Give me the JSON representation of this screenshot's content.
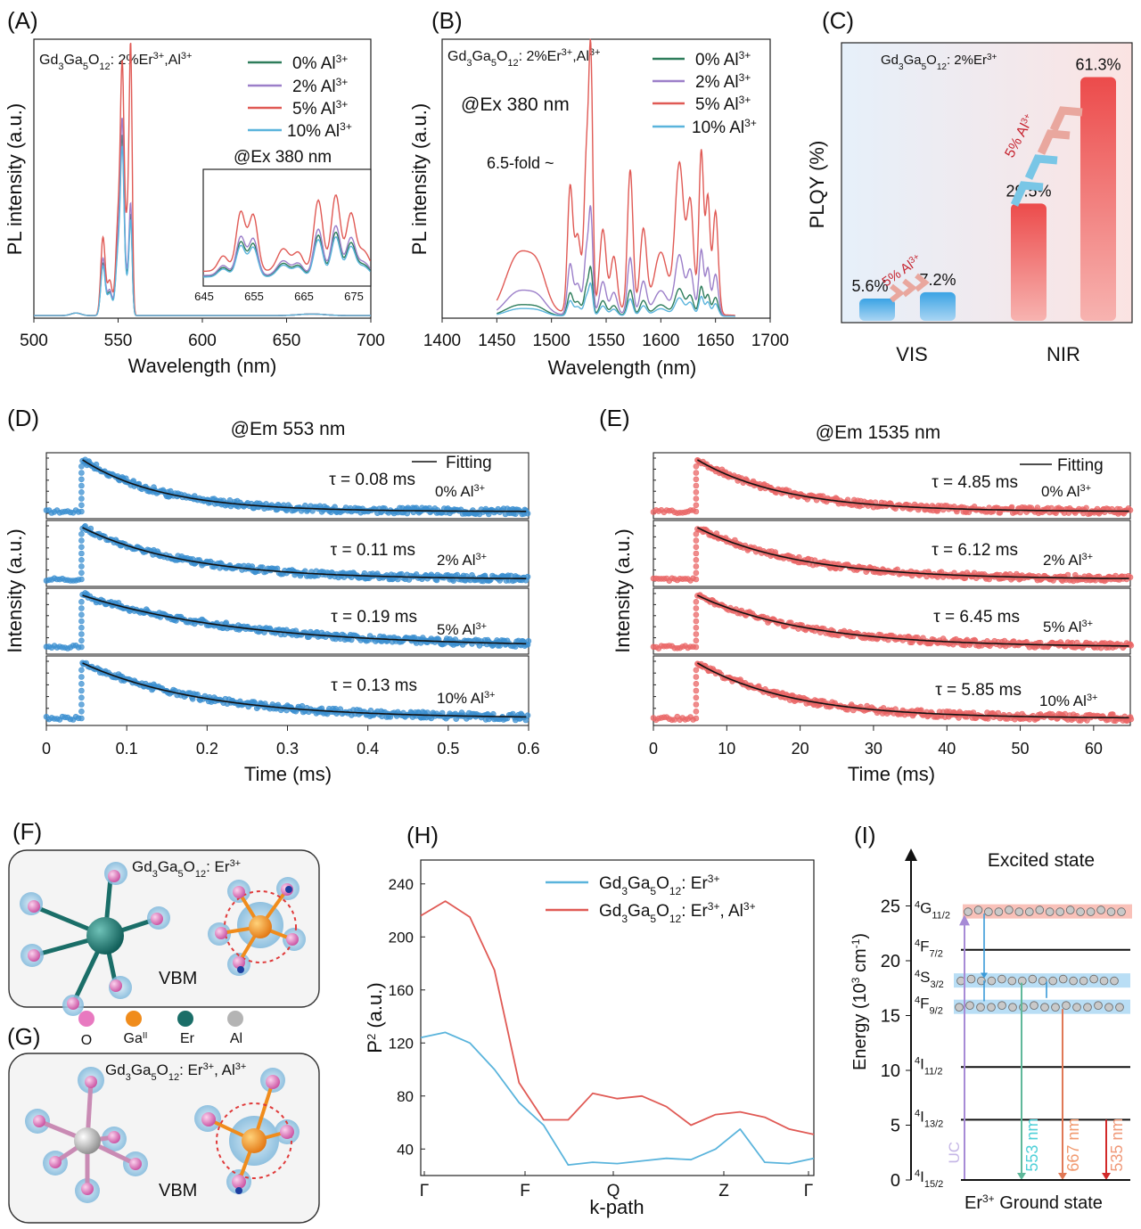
{
  "figure": {
    "panel_labels": [
      "(A)",
      "(B)",
      "(C)",
      "(D)",
      "(E)",
      "(F)",
      "(G)",
      "(H)",
      "(I)"
    ]
  },
  "panelA": {
    "compound_main": "Gd",
    "sub1": "3",
    "mid1": "Ga",
    "sub2": "5",
    "mid2": "O",
    "sub3": "12",
    "compound_tail": ": 2%Er",
    "sup1": "3+",
    "tail2": ",Al",
    "sup2": "3+",
    "legend": [
      "0% Al",
      "2% Al",
      "5% Al",
      "10% Al"
    ],
    "legend_sup": "3+",
    "excitation": "@Ex 380 nm",
    "inset_xticks": [
      "645",
      "655",
      "665",
      "675"
    ]
  },
  "panelB": {
    "legend": [
      "0% Al",
      "2% Al",
      "5% Al",
      "10% Al"
    ],
    "excitation": "@Ex 380 nm",
    "fold": "6.5-fold ~"
  },
  "panelC": {
    "compound": "Gd3Ga5O12: 2%Er3+",
    "arrow_label": "5% Al3+"
  },
  "panelD": {
    "emission": "@Em 553 nm",
    "fitting": "Fitting"
  },
  "panelE": {
    "emission": "@Em 1535 nm",
    "fitting": "Fitting"
  },
  "panelF": {
    "compound": "Gd3Ga5O12: Er3+",
    "vbm": "VBM"
  },
  "panelG": {
    "compound": "Gd3Ga5O12: Er3+, Al3+",
    "vbm": "VBM",
    "legend": [
      "O",
      "Ga",
      "Er",
      "Al"
    ],
    "legend_colors": [
      "#e879c0",
      "#f08c1c",
      "#1a6e68",
      "#b4b4b4"
    ]
  },
  "panelH": {
    "series_labels": [
      "Gd3Ga5O12: Er3+",
      "Gd3Ga5O12: Er3+, Al3+"
    ]
  },
  "panelI": {
    "title": "Excited state",
    "bottom": "Er3+ Ground state",
    "levels": [
      "4G11/2",
      "4F7/2",
      "4S3/2",
      "4F9/2",
      "4I11/2",
      "4I13/2",
      "4I15/2"
    ],
    "transitions": [
      "UC",
      "553 nm",
      "667 nm",
      "535 nm"
    ]
  },
  "chart_data": [
    {
      "id": "A",
      "type": "line",
      "title": "Gd3Ga5O12: 2%Er3+,Al3+",
      "xlabel": "Wavelength (nm)",
      "ylabel": "PL intensity (a.u.)",
      "xlim": [
        500,
        700
      ],
      "xticks": [
        500,
        550,
        600,
        650,
        700
      ],
      "series": [
        {
          "name": "0% Al3+",
          "color": "#2e7d5b",
          "peak_values": [
            0.2,
            0.64,
            0.36
          ]
        },
        {
          "name": "2% Al3+",
          "color": "#9c7fc9",
          "peak_values": [
            0.22,
            0.7,
            0.4
          ]
        },
        {
          "name": "5% Al3+",
          "color": "#e05a55",
          "peak_values": [
            0.3,
            0.9,
            0.97
          ]
        },
        {
          "name": "10% Al3+",
          "color": "#5ab4dc",
          "peak_values": [
            0.19,
            0.6,
            0.34
          ]
        }
      ]
    },
    {
      "id": "B",
      "type": "line",
      "title": "Gd3Ga5O12: 2%Er3+,Al3+",
      "xlabel": "Wavelength (nm)",
      "ylabel": "PL intensity (a.u.)",
      "xlim": [
        1400,
        1700
      ],
      "xticks": [
        1400,
        1450,
        1500,
        1550,
        1600,
        1650,
        1700
      ],
      "series": [
        {
          "name": "0% Al3+",
          "color": "#2e7d5b",
          "scale": 0.18
        },
        {
          "name": "2% Al3+",
          "color": "#9c7fc9",
          "scale": 0.4
        },
        {
          "name": "5% Al3+",
          "color": "#e05a55",
          "scale": 1.0
        },
        {
          "name": "10% Al3+",
          "color": "#5ab4dc",
          "scale": 0.12
        }
      ]
    },
    {
      "id": "C",
      "type": "bar",
      "ylabel": "PLQY (%)",
      "categories": [
        "VIS",
        "NIR"
      ],
      "series": [
        {
          "name": "0% Al3+",
          "values": [
            5.6,
            29.5
          ]
        },
        {
          "name": "5% Al3+",
          "values": [
            7.2,
            61.3
          ]
        }
      ],
      "value_labels": [
        "5.6%",
        "7.2%",
        "29.5%",
        "61.3%"
      ],
      "ylim": [
        0,
        65
      ]
    },
    {
      "id": "D",
      "type": "scatter",
      "xlabel": "Time (ms)",
      "ylabel": "Intensity (a.u.)",
      "xlim": [
        0,
        0.6
      ],
      "xticks": [
        "0",
        "0.1",
        "0.2",
        "0.3",
        "0.4",
        "0.5",
        "0.6"
      ],
      "decays": [
        {
          "label": "0% Al3+",
          "tau": "τ = 0.08 ms"
        },
        {
          "label": "2% Al3+",
          "tau": "τ = 0.11 ms"
        },
        {
          "label": "5% Al3+",
          "tau": "τ = 0.19 ms"
        },
        {
          "label": "10% Al3+",
          "tau": "τ = 0.13 ms"
        }
      ]
    },
    {
      "id": "E",
      "type": "scatter",
      "xlabel": "Time (ms)",
      "ylabel": "Intensity (a.u.)",
      "xlim": [
        0,
        65
      ],
      "xticks": [
        "0",
        "10",
        "20",
        "30",
        "40",
        "50",
        "60"
      ],
      "decays": [
        {
          "label": "0% Al3+",
          "tau": "τ = 4.85 ms"
        },
        {
          "label": "2% Al3+",
          "tau": "τ = 6.12 ms"
        },
        {
          "label": "5% Al3+",
          "tau": "τ = 6.45 ms"
        },
        {
          "label": "10% Al3+",
          "tau": "τ = 5.85 ms"
        }
      ]
    },
    {
      "id": "H",
      "type": "line",
      "xlabel": "k-path",
      "ylabel": "P2 (a.u.)",
      "xticks": [
        "Γ",
        "F",
        "Q",
        "Z",
        "Γ"
      ],
      "yticks": [
        40,
        80,
        120,
        160,
        200,
        240
      ],
      "ylim": [
        20,
        258
      ],
      "series": [
        {
          "name": "Gd3Ga5O12: Er3+",
          "color": "#5ab4dc",
          "values": [
            124,
            128,
            120,
            100,
            75,
            58,
            28,
            30,
            29,
            31,
            33,
            32,
            40,
            55,
            30,
            29,
            33
          ]
        },
        {
          "name": "Gd3Ga5O12: Er3+, Al3+",
          "color": "#e05a55",
          "values": [
            216,
            227,
            215,
            175,
            90,
            62,
            62,
            82,
            78,
            80,
            72,
            58,
            66,
            68,
            64,
            55,
            51
          ]
        }
      ]
    },
    {
      "id": "I",
      "type": "diagram",
      "ylabel": "Energy (10³ cm⁻¹)",
      "yticks": [
        0,
        5,
        10,
        15,
        20,
        25
      ],
      "levels": [
        {
          "name": "4G11/2",
          "energy": 24.5
        },
        {
          "name": "4F7/2",
          "energy": 21.0
        },
        {
          "name": "4S3/2",
          "energy": 18.2
        },
        {
          "name": "4F9/2",
          "energy": 15.8
        },
        {
          "name": "4I11/2",
          "energy": 10.3
        },
        {
          "name": "4I13/2",
          "energy": 5.5
        },
        {
          "name": "4I15/2",
          "energy": 0
        }
      ]
    }
  ]
}
